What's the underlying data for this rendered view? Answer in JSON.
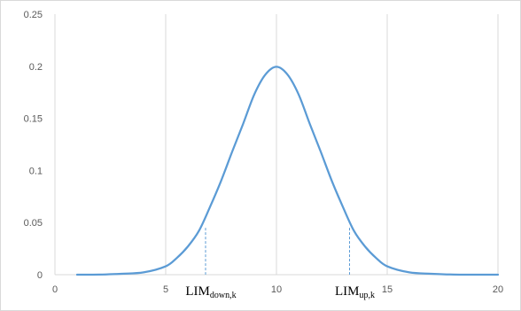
{
  "chart_data": {
    "type": "line",
    "title": "",
    "xlabel": "",
    "ylabel": "",
    "xlim": [
      0,
      20
    ],
    "ylim": [
      0,
      0.25
    ],
    "x_ticks": [
      0,
      5,
      10,
      15,
      20
    ],
    "y_ticks": [
      0,
      0.05,
      0.1,
      0.15,
      0.2,
      0.25
    ],
    "x_tick_labels": [
      "0",
      "5",
      "10",
      "15",
      "20"
    ],
    "y_tick_labels": [
      "0",
      "0.05",
      "0.1",
      "0.15",
      "0.2",
      "0.25"
    ],
    "grid": {
      "vertical": true,
      "horizontal": false
    },
    "legend": "none",
    "series": [
      {
        "x": [
          1,
          2,
          3,
          4,
          5,
          5.5,
          6,
          6.5,
          7,
          7.5,
          8,
          8.5,
          9,
          9.5,
          10,
          10.5,
          11,
          11.5,
          12,
          12.5,
          13,
          13.5,
          14,
          14.5,
          15,
          16,
          17,
          18,
          19,
          20
        ],
        "y": [
          0.0,
          0.0001,
          0.0009,
          0.0022,
          0.008,
          0.016,
          0.027,
          0.042,
          0.065,
          0.09,
          0.118,
          0.145,
          0.173,
          0.192,
          0.1995,
          0.192,
          0.173,
          0.145,
          0.118,
          0.09,
          0.065,
          0.042,
          0.027,
          0.016,
          0.008,
          0.0022,
          0.0009,
          0.0001,
          0.0,
          0.0
        ],
        "color": "#5b9bd5"
      }
    ],
    "markers": [
      {
        "label": "LIM",
        "subscript": "down,k",
        "x": 6.8,
        "y_top": 0.045
      },
      {
        "label": "LIM",
        "subscript": "up,k",
        "x": 13.3,
        "y_top": 0.045
      }
    ],
    "colors": {
      "line": "#5b9bd5",
      "grid": "#d9d9d9",
      "axis": "#d9d9d9",
      "tick_text": "#595959",
      "marker_line": "#5b9bd5"
    }
  }
}
